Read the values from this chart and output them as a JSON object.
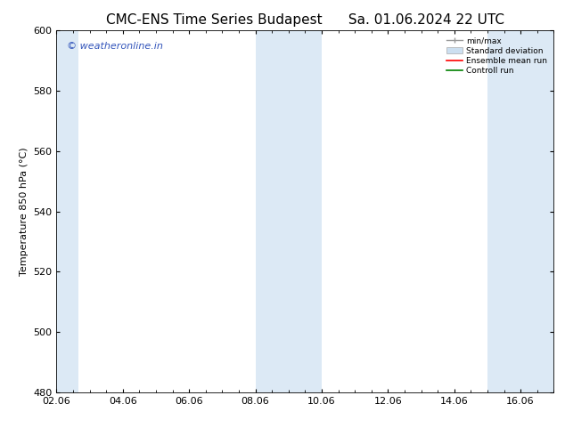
{
  "title_left": "CMC-ENS Time Series Budapest",
  "title_right": "Sa. 01.06.2024 22 UTC",
  "ylabel": "Temperature 850 hPa (°C)",
  "ylim": [
    480,
    600
  ],
  "yticks": [
    480,
    500,
    520,
    540,
    560,
    580,
    600
  ],
  "xtick_labels": [
    "02.06",
    "04.06",
    "06.06",
    "08.06",
    "10.06",
    "12.06",
    "14.06",
    "16.06"
  ],
  "xtick_positions": [
    2,
    4,
    6,
    8,
    10,
    12,
    14,
    16
  ],
  "xlim": [
    2,
    17
  ],
  "shaded_bands": [
    {
      "x_start": 2.0,
      "x_end": 2.67,
      "color": "#dce9f5"
    },
    {
      "x_start": 8.0,
      "x_end": 10.0,
      "color": "#dce9f5"
    },
    {
      "x_start": 15.0,
      "x_end": 17.0,
      "color": "#dce9f5"
    }
  ],
  "watermark_text": "© weatheronline.in",
  "watermark_color": "#3355bb",
  "background_color": "#ffffff",
  "title_fontsize": 11,
  "tick_fontsize": 8,
  "label_fontsize": 8,
  "watermark_fontsize": 8
}
